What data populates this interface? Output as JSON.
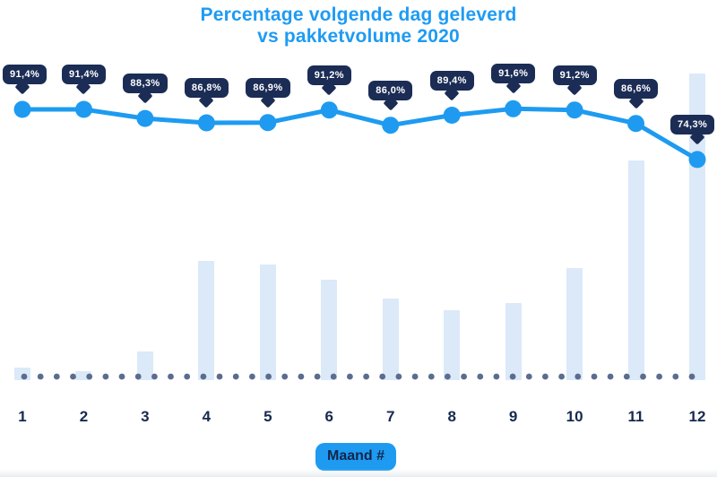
{
  "title": {
    "line1": "Percentage volgende dag geleverd",
    "line2": "vs pakketvolume 2020"
  },
  "x_axis": {
    "label_badge": "Maand #",
    "tick_labels": [
      "1",
      "2",
      "3",
      "4",
      "5",
      "6",
      "7",
      "8",
      "9",
      "10",
      "11",
      "12"
    ]
  },
  "colors": {
    "accent_blue": "#1e9bf0",
    "title_blue": "#1e9bf3",
    "navy": "#1b2c55",
    "bar_fill": "#dbe9f8",
    "baseline_dot": "#5b6c8e",
    "label_text": "#17294f",
    "background": "#ffffff"
  },
  "chart_data": {
    "type": "combo (line + bar)",
    "title": "Percentage volgende dag geleverd vs pakketvolume 2020",
    "xlabel": "Maand #",
    "ylabel": "",
    "categories": [
      "1",
      "2",
      "3",
      "4",
      "5",
      "6",
      "7",
      "8",
      "9",
      "10",
      "11",
      "12"
    ],
    "series": [
      {
        "name": "Percentage volgende dag geleverd",
        "type": "line",
        "unit": "%",
        "values": [
          91.4,
          91.4,
          88.3,
          86.8,
          86.9,
          91.2,
          86.0,
          89.4,
          91.6,
          91.2,
          86.6,
          74.3
        ],
        "point_labels": [
          "91,4%",
          "91,4%",
          "88,3%",
          "86,8%",
          "86,9%",
          "91,2%",
          "86,0%",
          "89,4%",
          "91,6%",
          "91,2%",
          "86,6%",
          "74,3%"
        ]
      },
      {
        "name": "Pakketvolume 2020",
        "type": "bar",
        "unit": "relative height, % of max (no value axis shown)",
        "values": [
          4.1,
          2.9,
          9.4,
          38.9,
          37.7,
          32.7,
          26.6,
          22.8,
          25.1,
          36.5,
          71.6,
          100
        ]
      }
    ],
    "legend": "none",
    "grid": "dotted horizontal baseline only",
    "line_value_range_shown": [
      74.3,
      91.6
    ]
  }
}
